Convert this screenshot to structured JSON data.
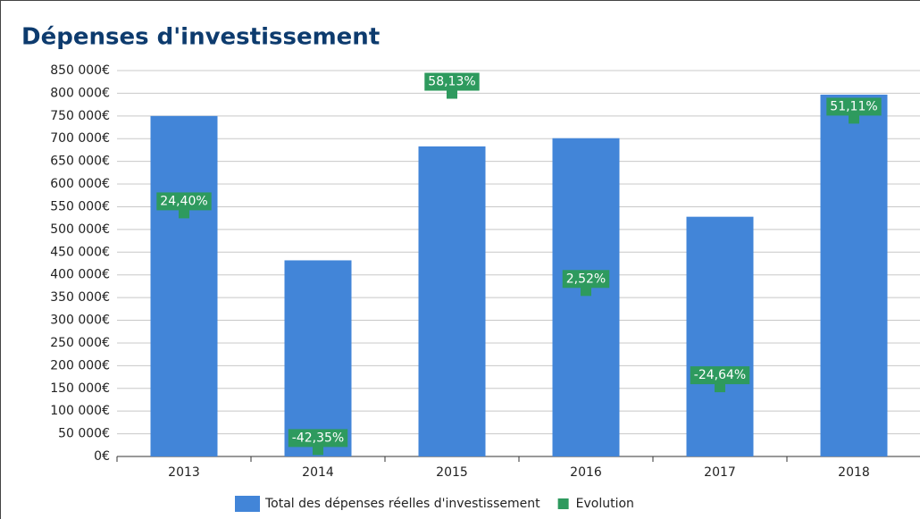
{
  "chart_data": {
    "type": "bar",
    "title": "Dépenses d'investissement",
    "categories": [
      "2013",
      "2014",
      "2015",
      "2016",
      "2017",
      "2018"
    ],
    "series": [
      {
        "name": "Total des dépenses réelles d'investissement",
        "color": "#4285d8",
        "type": "bar",
        "values": [
          750000,
          432000,
          683000,
          701000,
          528000,
          797000
        ]
      },
      {
        "name": "Evolution",
        "color": "#2e9a5e",
        "type": "scatter",
        "axis": "y2",
        "values": [
          24.4,
          -42.35,
          58.13,
          2.52,
          -24.64,
          51.11
        ],
        "value_labels": [
          "24,40%",
          "-42,35%",
          "58,13%",
          "2,52%",
          "-24,64%",
          "51,11%"
        ]
      }
    ],
    "ylim": [
      0,
      850000
    ],
    "yticks": [
      {
        "value": 0,
        "label": "0€"
      },
      {
        "value": 50000,
        "label": "50 000€"
      },
      {
        "value": 100000,
        "label": "100 000€"
      },
      {
        "value": 150000,
        "label": "150 000€"
      },
      {
        "value": 200000,
        "label": "200 000€"
      },
      {
        "value": 250000,
        "label": "250 000€"
      },
      {
        "value": 300000,
        "label": "300 000€"
      },
      {
        "value": 350000,
        "label": "350 000€"
      },
      {
        "value": 400000,
        "label": "400 000€"
      },
      {
        "value": 450000,
        "label": "450 000€"
      },
      {
        "value": 500000,
        "label": "500 000€"
      },
      {
        "value": 550000,
        "label": "550 000€"
      },
      {
        "value": 600000,
        "label": "600 000€"
      },
      {
        "value": 650000,
        "label": "650 000€"
      },
      {
        "value": 700000,
        "label": "700 000€"
      },
      {
        "value": 750000,
        "label": "750 000€"
      },
      {
        "value": 800000,
        "label": "800 000€"
      },
      {
        "value": 850000,
        "label": "850 000€"
      }
    ],
    "y2lim": [
      -44.27,
      64.56
    ],
    "grid": true,
    "legend": "bottom"
  }
}
